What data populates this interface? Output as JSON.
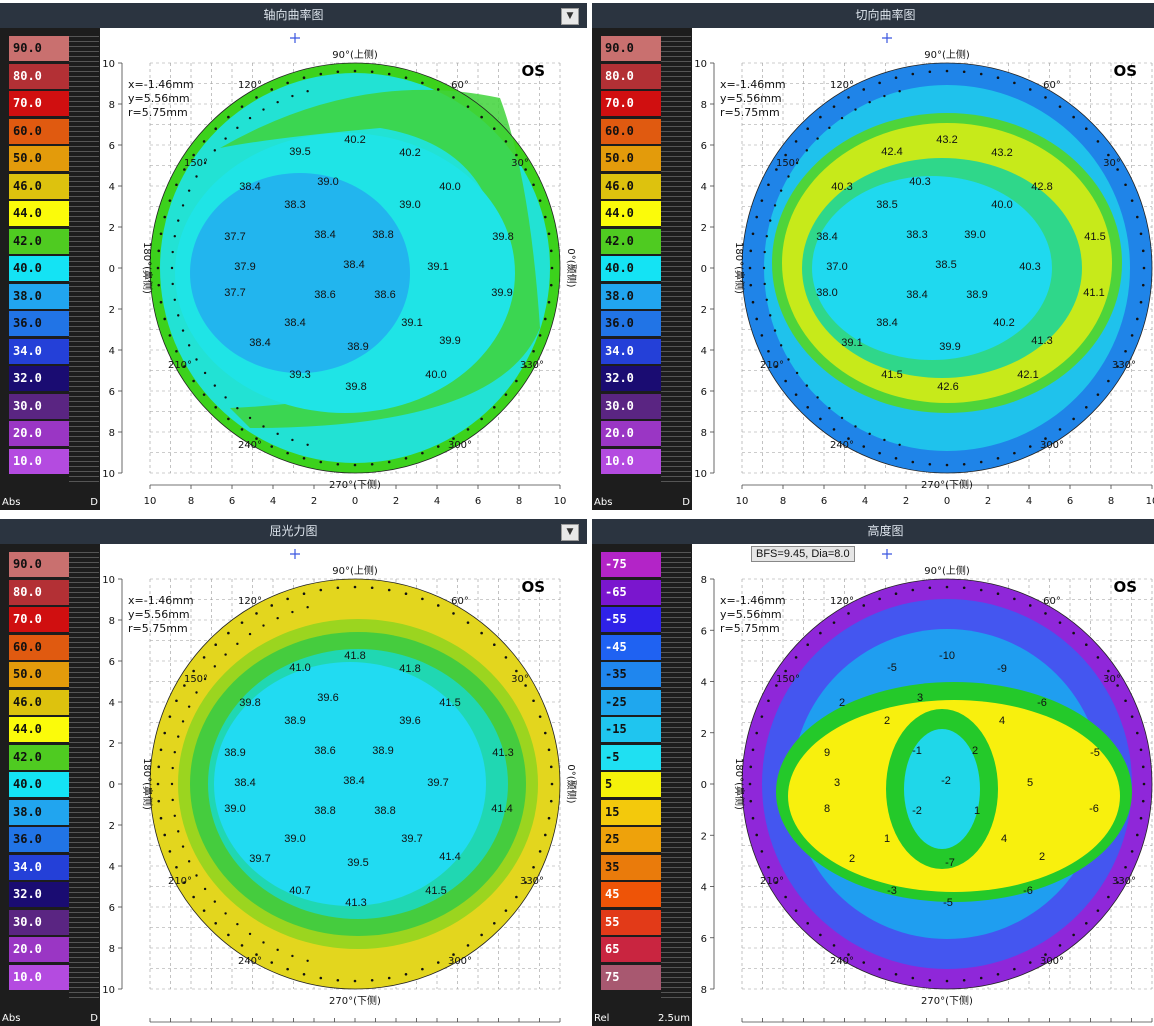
{
  "panels": [
    {
      "title": "轴向曲率图",
      "has_dropdown": true,
      "scale": [
        "90.0",
        "80.0",
        "70.0",
        "60.0",
        "50.0",
        "46.0",
        "44.0",
        "42.0",
        "40.0",
        "38.0",
        "36.0",
        "34.0",
        "32.0",
        "30.0",
        "20.0",
        "10.0"
      ],
      "scale_colors": [
        "#c9706f",
        "#b33035",
        "#d00f10",
        "#e05a10",
        "#e39b0b",
        "#ddc20e",
        "#fbfb0a",
        "#4fcb21",
        "#14e3f4",
        "#21a5ef",
        "#2174e6",
        "#2440d8",
        "#1a0c72",
        "#5a2582",
        "#9a36c4",
        "#b44be0"
      ],
      "foot_left": "Abs",
      "foot_right": "D",
      "eye": "OS",
      "coords": {
        "x": "x=-1.46mm",
        "y": "y=5.56mm",
        "r": "r=5.75mm"
      },
      "top_label": "90°(上侧)",
      "bottom_label": "270°(下侧)",
      "left_label": "180°(鼻侧)",
      "right_label": "0°(颞侧)",
      "angle_labels": [
        "120°",
        "60°",
        "150°",
        "30°",
        "210°",
        "330°",
        "240°",
        "300°"
      ],
      "y_ticks": [
        "10",
        "8",
        "6",
        "4",
        "2",
        "0",
        "2",
        "4",
        "6",
        "8",
        "10"
      ],
      "x_ticks": [
        "10",
        "8",
        "6",
        "4",
        "2",
        "0",
        "2",
        "4",
        "6",
        "8",
        "10"
      ],
      "values": [
        "40.2",
        "39.5",
        "40.2",
        "38.4",
        "39.0",
        "40.0",
        "38.3",
        "39.0",
        "37.7",
        "38.4",
        "38.8",
        "39.8",
        "37.9",
        "38.4",
        "39.1",
        "37.7",
        "38.6",
        "38.6",
        "39.9",
        "38.4",
        "39.1",
        "38.4",
        "38.9",
        "39.9",
        "39.3",
        "39.8",
        "40.0"
      ],
      "colors": {
        "outer": "#3cd21c",
        "mid": "#1fe4e6",
        "inner": "#22b5ee"
      }
    },
    {
      "title": "切向曲率图",
      "has_dropdown": false,
      "scale": [
        "90.0",
        "80.0",
        "70.0",
        "60.0",
        "50.0",
        "46.0",
        "44.0",
        "42.0",
        "40.0",
        "38.0",
        "36.0",
        "34.0",
        "32.0",
        "30.0",
        "20.0",
        "10.0"
      ],
      "scale_colors": [
        "#c9706f",
        "#b33035",
        "#d00f10",
        "#e05a10",
        "#e39b0b",
        "#ddc20e",
        "#fbfb0a",
        "#4fcb21",
        "#14e3f4",
        "#21a5ef",
        "#2174e6",
        "#2440d8",
        "#1a0c72",
        "#5a2582",
        "#9a36c4",
        "#b44be0"
      ],
      "foot_left": "Abs",
      "foot_right": "D",
      "eye": "OS",
      "coords": {
        "x": "x=-1.46mm",
        "y": "y=5.56mm",
        "r": "r=5.75mm"
      },
      "top_label": "90°(上侧)",
      "bottom_label": "270°(下侧)",
      "left_label": "180°(鼻侧)",
      "right_label": "0°(颞侧)",
      "angle_labels": [
        "120°",
        "60°",
        "150°",
        "30°",
        "210°",
        "330°",
        "240°",
        "300°"
      ],
      "y_ticks": [
        "10",
        "8",
        "6",
        "4",
        "2",
        "0",
        "2",
        "4",
        "6",
        "8",
        "10"
      ],
      "x_ticks": [
        "10",
        "8",
        "6",
        "4",
        "2",
        "0",
        "2",
        "4",
        "6",
        "8",
        "10"
      ],
      "values": [
        "43.2",
        "42.4",
        "43.2",
        "40.3",
        "40.3",
        "42.8",
        "38.5",
        "40.0",
        "38.4",
        "38.3",
        "39.0",
        "41.5",
        "37.0",
        "38.5",
        "40.3",
        "38.0",
        "38.4",
        "38.9",
        "41.1",
        "38.4",
        "40.2",
        "39.1",
        "39.9",
        "41.3",
        "41.5",
        "42.6",
        "42.1"
      ],
      "colors": {
        "outer": "#1f84e8",
        "mid": "#c7ea1a",
        "inner": "#1fd9ef"
      }
    },
    {
      "title": "屈光力图",
      "has_dropdown": true,
      "scale": [
        "90.0",
        "80.0",
        "70.0",
        "60.0",
        "50.0",
        "46.0",
        "44.0",
        "42.0",
        "40.0",
        "38.0",
        "36.0",
        "34.0",
        "32.0",
        "30.0",
        "20.0",
        "10.0"
      ],
      "scale_colors": [
        "#c9706f",
        "#b33035",
        "#d00f10",
        "#e05a10",
        "#e39b0b",
        "#ddc20e",
        "#fbfb0a",
        "#4fcb21",
        "#14e3f4",
        "#21a5ef",
        "#2174e6",
        "#2440d8",
        "#1a0c72",
        "#5a2582",
        "#9a36c4",
        "#b44be0"
      ],
      "foot_left": "Abs",
      "foot_right": "D",
      "eye": "OS",
      "coords": {
        "x": "x=-1.46mm",
        "y": "y=5.56mm",
        "r": "r=5.75mm"
      },
      "top_label": "90°(上侧)",
      "bottom_label": "270°(下侧)",
      "left_label": "180°(鼻侧)",
      "right_label": "0°(颞侧)",
      "angle_labels": [
        "120°",
        "60°",
        "150°",
        "30°",
        "210°",
        "330°",
        "240°",
        "300°"
      ],
      "y_ticks": [
        "10",
        "8",
        "6",
        "4",
        "2",
        "0",
        "2",
        "4",
        "6",
        "8",
        "10"
      ],
      "x_ticks": [],
      "values": [
        "41.8",
        "41.0",
        "41.8",
        "39.8",
        "39.6",
        "41.5",
        "38.9",
        "39.6",
        "38.9",
        "38.6",
        "38.9",
        "41.3",
        "38.4",
        "38.4",
        "39.7",
        "39.0",
        "38.8",
        "38.8",
        "41.4",
        "39.0",
        "39.7",
        "39.7",
        "39.5",
        "41.4",
        "40.7",
        "41.3",
        "41.5"
      ],
      "colors": {
        "outer": "#e3d61e",
        "mid": "#45cc3e",
        "inner": "#21dbf2"
      }
    },
    {
      "title": "高度图",
      "has_dropdown": false,
      "bfs": "BFS=9.45, Dia=8.0",
      "scale": [
        "-75",
        "-65",
        "-55",
        "-45",
        "-35",
        "-25",
        "-15",
        "-5",
        "5",
        "15",
        "25",
        "35",
        "45",
        "55",
        "65",
        "75"
      ],
      "scale_colors": [
        "#b324c7",
        "#7a16ce",
        "#2f22e8",
        "#1f62f2",
        "#1f86ee",
        "#1fa7ee",
        "#1fc5ef",
        "#1fe0f2",
        "#f5f20a",
        "#f3c90c",
        "#eea20b",
        "#ea7b0b",
        "#ee5407",
        "#e23a18",
        "#c92540",
        "#a85870"
      ],
      "foot_left": "Rel",
      "foot_right": "2.5um",
      "eye": "OS",
      "coords": {
        "x": "x=-1.46mm",
        "y": "y=5.56mm",
        "r": "r=5.75mm"
      },
      "top_label": "90°(上侧)",
      "bottom_label": "270°(下侧)",
      "left_label": "180°(鼻侧)",
      "right_label": "0°(颞侧)",
      "angle_labels": [
        "120°",
        "60°",
        "150°",
        "30°",
        "210°",
        "330°",
        "240°",
        "300°"
      ],
      "y_ticks": [
        "8",
        "6",
        "4",
        "2",
        "0",
        "2",
        "4",
        "6",
        "8"
      ],
      "x_ticks": [],
      "values": [
        "-10",
        "-5",
        "-9",
        "2",
        "3",
        "-6",
        "2",
        "4",
        "9",
        "-1",
        "2",
        "-5",
        "3",
        "-2",
        "5",
        "8",
        "-2",
        "1",
        "-6",
        "1",
        "4",
        "2",
        "-7",
        "2",
        "-3",
        "-5",
        "-6"
      ],
      "colors": {
        "outer": "#8f27d9",
        "mid": "#f8f00d",
        "inner": "#1fd7e9"
      }
    }
  ]
}
